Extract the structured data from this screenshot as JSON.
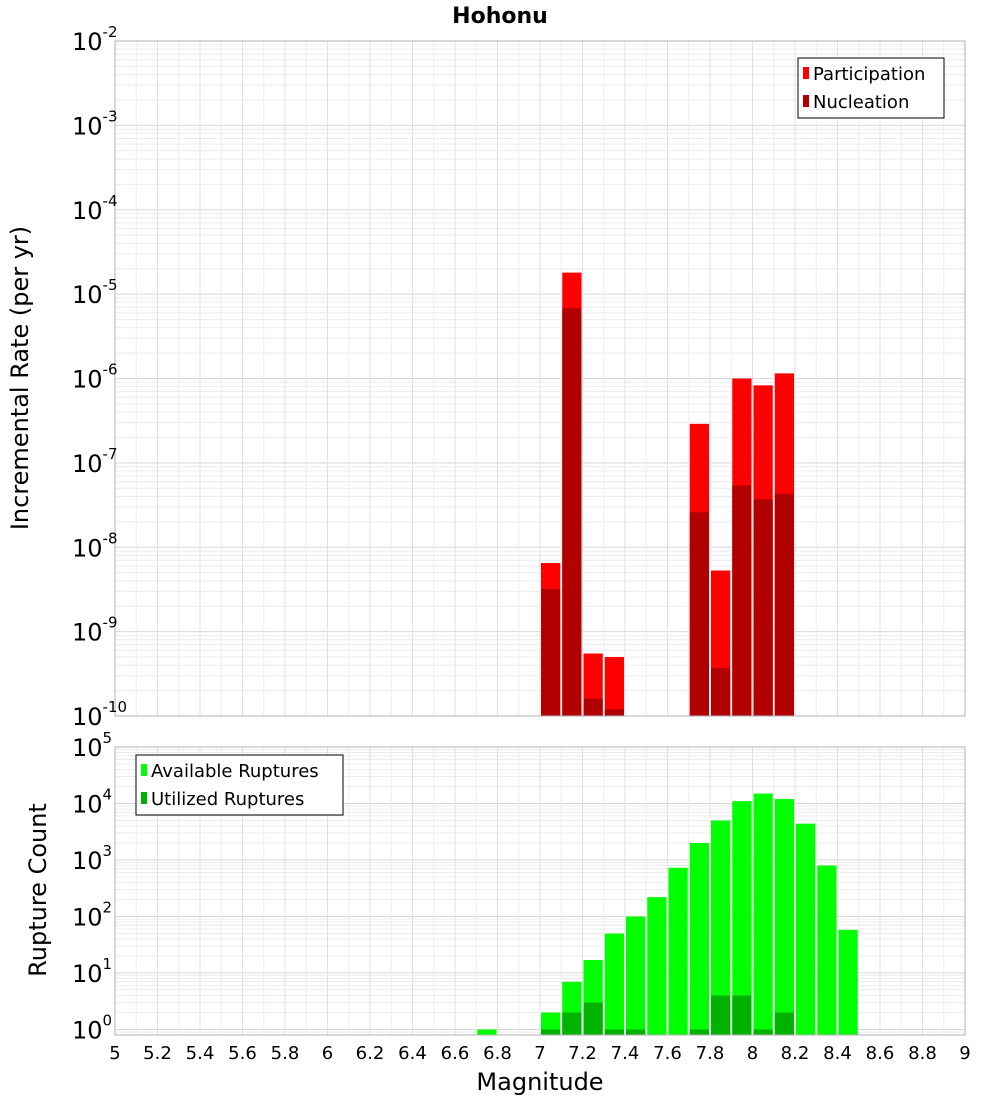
{
  "chart_data": [
    {
      "type": "bar",
      "title": "Hohonu",
      "ylabel": "Incremental Rate (per yr)",
      "xlabel": "",
      "y_scale": "log",
      "ylim": [
        1e-10,
        0.01
      ],
      "xlim": [
        5,
        9
      ],
      "legend": "top-right",
      "grid": true,
      "series": [
        {
          "name": "Participation",
          "color": "#ff0000",
          "x": [
            7.05,
            7.15,
            7.25,
            7.35,
            7.75,
            7.85,
            7.95,
            8.05,
            8.15
          ],
          "values": [
            6.5e-09,
            1.8e-05,
            5.5e-10,
            5e-10,
            2.9e-07,
            5.3e-09,
            1e-06,
            8.3e-07,
            1.15e-06
          ]
        },
        {
          "name": "Nucleation",
          "color": "#b20000",
          "x": [
            7.05,
            7.15,
            7.25,
            7.35,
            7.75,
            7.85,
            7.95,
            8.05,
            8.15
          ],
          "values": [
            3.2e-09,
            6.8e-06,
            1.6e-10,
            1.2e-10,
            2.6e-08,
            3.7e-10,
            5.4e-08,
            3.7e-08,
            4.3e-08
          ]
        }
      ]
    },
    {
      "type": "bar",
      "title": "",
      "ylabel": "Rupture Count",
      "xlabel": "Magnitude",
      "y_scale": "log",
      "ylim": [
        0.8,
        100000.0
      ],
      "xlim": [
        5,
        9
      ],
      "legend": "top-left",
      "grid": true,
      "x_ticks": [
        "5",
        "5.2",
        "5.4",
        "5.6",
        "5.8",
        "6",
        "6.2",
        "6.4",
        "6.6",
        "6.8",
        "7",
        "7.2",
        "7.4",
        "7.6",
        "7.8",
        "8",
        "8.2",
        "8.4",
        "8.6",
        "8.8",
        "9"
      ],
      "series": [
        {
          "name": "Available Ruptures",
          "color": "#00ff00",
          "x": [
            6.75,
            7.05,
            7.15,
            7.25,
            7.35,
            7.45,
            7.55,
            7.65,
            7.75,
            7.85,
            7.95,
            8.05,
            8.15,
            8.25,
            8.35,
            8.45
          ],
          "values": [
            1,
            2,
            7,
            17,
            50,
            100,
            220,
            730,
            2000,
            5000,
            11000,
            15000,
            12000,
            4400,
            800,
            58
          ]
        },
        {
          "name": "Utilized Ruptures",
          "color": "#00b200",
          "x": [
            7.05,
            7.15,
            7.25,
            7.35,
            7.45,
            7.75,
            7.85,
            7.95,
            8.05,
            8.15
          ],
          "values": [
            1,
            2,
            3,
            1,
            1,
            1,
            4,
            4,
            1,
            2
          ]
        }
      ]
    }
  ]
}
